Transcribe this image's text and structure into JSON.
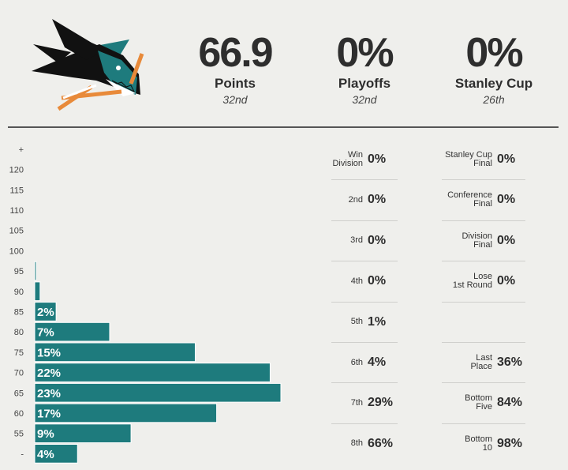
{
  "header": {
    "logo_icon": "shark-logo-icon",
    "stats": [
      {
        "value": "66.9",
        "label": "Points",
        "rank": "32nd"
      },
      {
        "value": "0%",
        "label": "Playoffs",
        "rank": "32nd"
      },
      {
        "value": "0%",
        "label": "Stanley Cup",
        "rank": "26th"
      }
    ]
  },
  "colors": {
    "bar": "#1e7b7d",
    "bar_outline": "#ffffff",
    "background": "#efefec"
  },
  "chart_data": {
    "type": "bar",
    "orientation": "horizontal",
    "categories": [
      "+",
      "120",
      "115",
      "110",
      "105",
      "100",
      "95",
      "90",
      "85",
      "80",
      "75",
      "70",
      "65",
      "60",
      "55",
      "-"
    ],
    "values": [
      0,
      0,
      0,
      0,
      0,
      0,
      0.1,
      0.5,
      2,
      7,
      15,
      22,
      23,
      17,
      9,
      4
    ],
    "data_labels": [
      "",
      "",
      "",
      "",
      "",
      "",
      "",
      "",
      "2%",
      "7%",
      "15%",
      "22%",
      "23%",
      "17%",
      "9%",
      "4%"
    ],
    "xlim": [
      0,
      23
    ]
  },
  "seed_table": {
    "rows": [
      {
        "label": "Win\nDivision",
        "value": "0%"
      },
      {
        "label": "2nd",
        "value": "0%"
      },
      {
        "label": "3rd",
        "value": "0%"
      },
      {
        "label": "4th",
        "value": "0%"
      },
      {
        "label": "5th",
        "value": "1%"
      },
      {
        "label": "6th",
        "value": "4%"
      },
      {
        "label": "7th",
        "value": "29%"
      },
      {
        "label": "8th",
        "value": "66%"
      }
    ]
  },
  "outcome_table": {
    "rows": [
      {
        "label": "Stanley Cup\nFinal",
        "value": "0%"
      },
      {
        "label": "Conference\nFinal",
        "value": "0%"
      },
      {
        "label": "Division\nFinal",
        "value": "0%"
      },
      {
        "label": "Lose\n1st Round",
        "value": "0%"
      },
      {
        "label": "",
        "value": ""
      },
      {
        "label": "Last\nPlace",
        "value": "36%"
      },
      {
        "label": "Bottom\nFive",
        "value": "84%"
      },
      {
        "label": "Bottom\n10",
        "value": "98%"
      }
    ]
  }
}
